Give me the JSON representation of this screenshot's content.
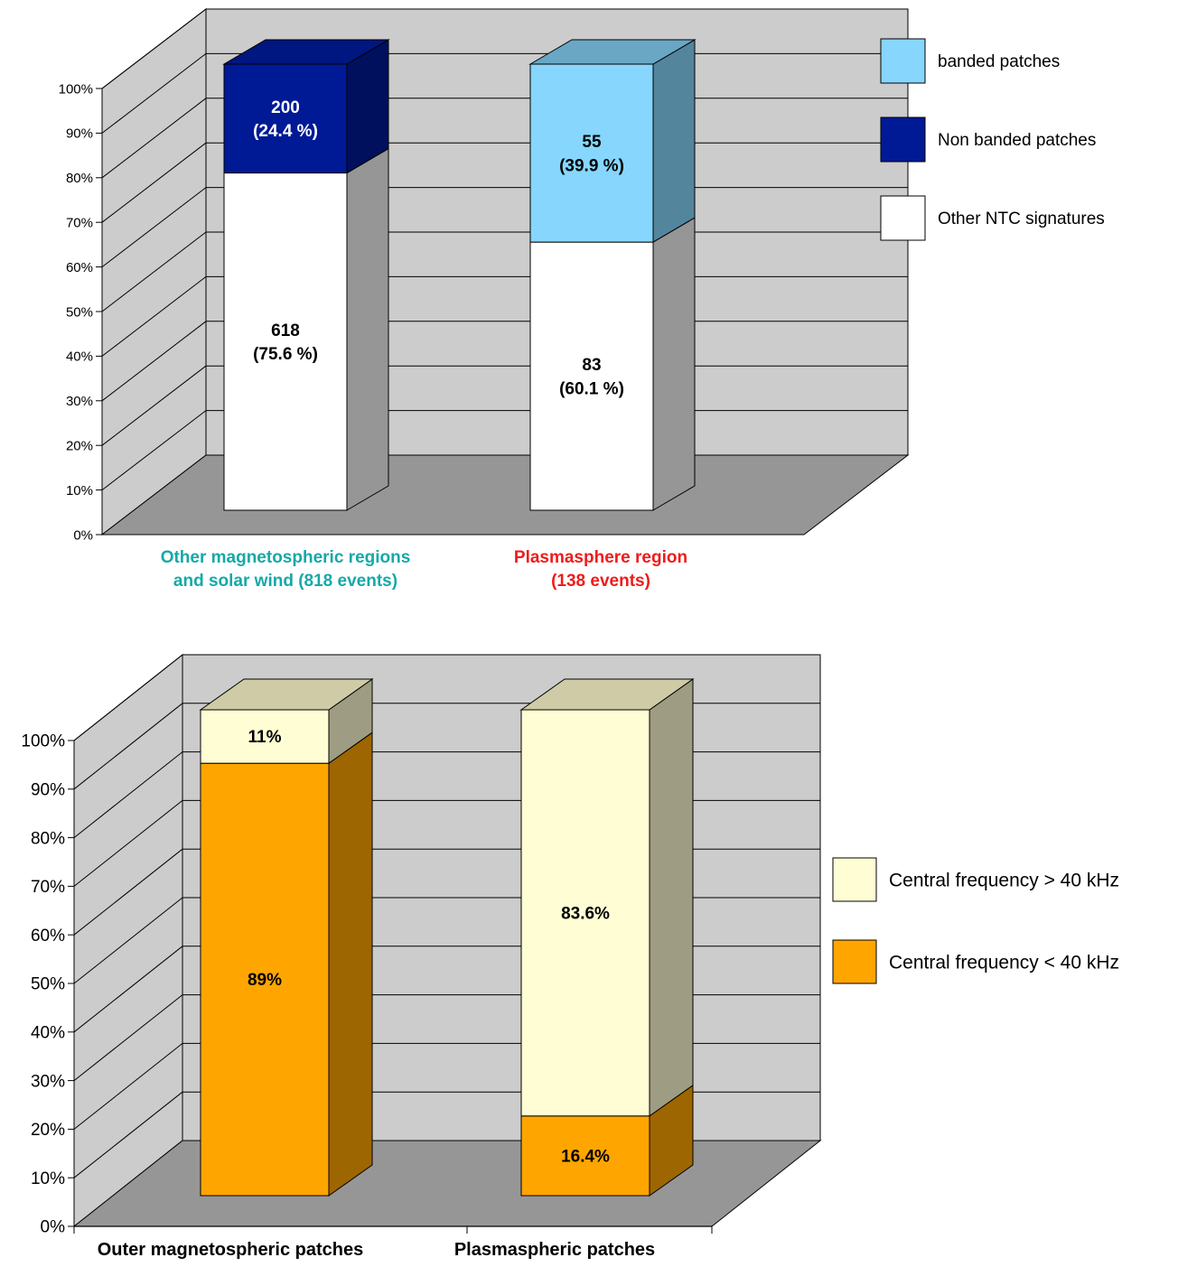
{
  "chart_data": [
    {
      "type": "bar",
      "stacked": true,
      "three_d": true,
      "ylim": [
        0,
        100
      ],
      "yticks": [
        "0%",
        "10%",
        "20%",
        "30%",
        "40%",
        "50%",
        "60%",
        "70%",
        "80%",
        "90%",
        "100%"
      ],
      "categories": [
        {
          "lines": [
            "Other magnetospheric regions",
            "and solar wind (818 events)"
          ],
          "color": "#17a8a8"
        },
        {
          "lines": [
            "Plasmasphere region",
            "(138 events)"
          ],
          "color": "#ee1c1c"
        }
      ],
      "series": [
        {
          "name": "Other NTC signatures",
          "values": [
            75.6,
            60.1
          ],
          "labels": [
            [
              "618",
              "(75.6 %)"
            ],
            [
              "83",
              "(60.1 %)"
            ]
          ],
          "color": "#ffffff",
          "label_color": "#000000"
        },
        {
          "name": "Non banded patches",
          "values": [
            24.4,
            0
          ],
          "labels": [
            [
              "200",
              "(24.4 %)"
            ],
            []
          ],
          "color": "#001a96",
          "label_color": "#ffffff"
        },
        {
          "name": "banded patches",
          "values": [
            0,
            39.9
          ],
          "labels": [
            [],
            [
              "55",
              "(39.9 %)"
            ]
          ],
          "color": "#86d6fd",
          "label_color": "#000000"
        }
      ],
      "legend": {
        "position": "right",
        "items": [
          {
            "name": "banded patches",
            "color": "#86d6fd"
          },
          {
            "name": "Non banded patches",
            "color": "#001a96"
          },
          {
            "name": "Other NTC signatures",
            "color": "#ffffff"
          }
        ]
      },
      "colors": {
        "wall": "#cccccc",
        "floor": "#969696",
        "grid": "#000000"
      }
    },
    {
      "type": "bar",
      "stacked": true,
      "three_d": true,
      "ylim": [
        0,
        100
      ],
      "yticks": [
        "0%",
        "10%",
        "20%",
        "30%",
        "40%",
        "50%",
        "60%",
        "70%",
        "80%",
        "90%",
        "100%"
      ],
      "categories": [
        {
          "lines": [
            "Outer magnetospheric patches"
          ],
          "color": "#000000"
        },
        {
          "lines": [
            "Plasmaspheric patches"
          ],
          "color": "#000000"
        }
      ],
      "series": [
        {
          "name": "Central frequency < 40 kHz",
          "values": [
            89,
            16.4
          ],
          "labels": [
            [
              "89%"
            ],
            [
              "16.4%"
            ]
          ],
          "color": "#ffa500",
          "label_color": "#000000"
        },
        {
          "name": "Central frequency > 40 kHz",
          "values": [
            11,
            83.6
          ],
          "labels": [
            [
              "11%"
            ],
            [
              "83.6%"
            ]
          ],
          "color": "#fffdd4",
          "label_color": "#000000"
        }
      ],
      "legend": {
        "position": "right",
        "items": [
          {
            "name": "Central frequency > 40 kHz",
            "color": "#fffdd4"
          },
          {
            "name": "Central frequency < 40 kHz",
            "color": "#ffa500"
          }
        ]
      },
      "colors": {
        "wall": "#cccccc",
        "floor": "#969696",
        "grid": "#000000"
      }
    }
  ]
}
